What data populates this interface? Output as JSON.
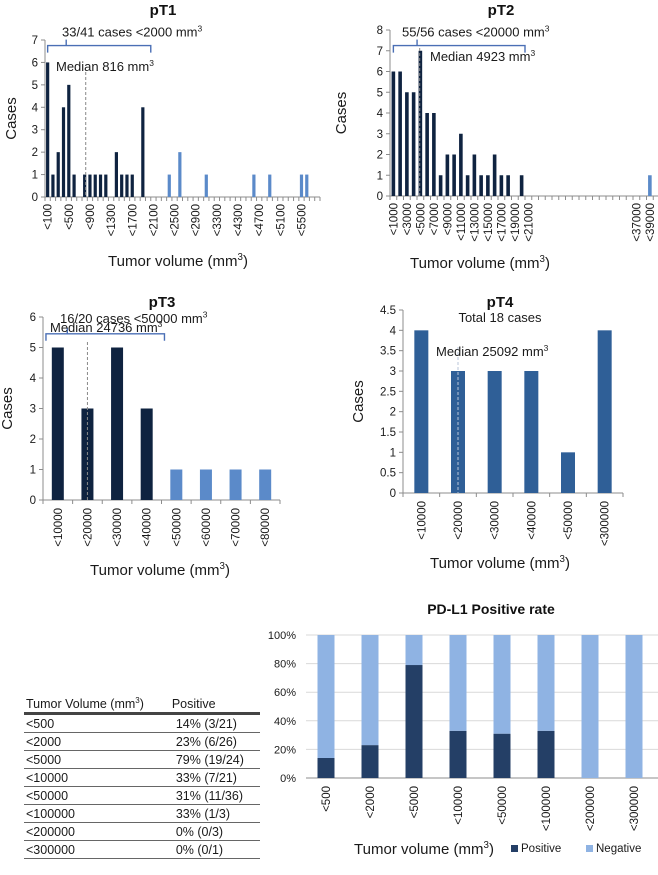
{
  "colors": {
    "dark_bar": "#0f2340",
    "light_bar": "#5b8ac9",
    "pt4_bar": "#2f5f97",
    "positive": "#243f66",
    "negative": "#8fb3e3",
    "bracket": "#4a6fb5",
    "median_line": "#888888",
    "axis": "#8c8c8c",
    "grid": "#d9d9d9"
  },
  "chart_data": [
    {
      "id": "pT1",
      "type": "bar",
      "title": "pT1",
      "xlabel": "Tumor volume (mm³)",
      "ylabel": "Cases",
      "ylim": [
        0,
        7
      ],
      "yticks": [
        0,
        1,
        2,
        3,
        4,
        5,
        6,
        7
      ],
      "n_bins": 52,
      "tick_labels": [
        {
          "bin": 0,
          "label": "<100"
        },
        {
          "bin": 4,
          "label": "<500"
        },
        {
          "bin": 8,
          "label": "<900"
        },
        {
          "bin": 12,
          "label": "<1300"
        },
        {
          "bin": 16,
          "label": "<1700"
        },
        {
          "bin": 20,
          "label": "<2100"
        },
        {
          "bin": 24,
          "label": "<2500"
        },
        {
          "bin": 28,
          "label": "<2900"
        },
        {
          "bin": 32,
          "label": "<3300"
        },
        {
          "bin": 36,
          "label": "<4300"
        },
        {
          "bin": 40,
          "label": "<4700"
        },
        {
          "bin": 44,
          "label": "<5100"
        },
        {
          "bin": 48,
          "label": "<5500"
        }
      ],
      "bars": [
        {
          "bin": 0,
          "value": 6,
          "group": "dark"
        },
        {
          "bin": 1,
          "value": 1,
          "group": "dark"
        },
        {
          "bin": 2,
          "value": 2,
          "group": "dark"
        },
        {
          "bin": 3,
          "value": 4,
          "group": "dark"
        },
        {
          "bin": 4,
          "value": 5,
          "group": "dark"
        },
        {
          "bin": 5,
          "value": 1,
          "group": "dark"
        },
        {
          "bin": 7,
          "value": 1,
          "group": "dark"
        },
        {
          "bin": 8,
          "value": 1,
          "group": "dark"
        },
        {
          "bin": 9,
          "value": 1,
          "group": "dark"
        },
        {
          "bin": 10,
          "value": 1,
          "group": "dark"
        },
        {
          "bin": 11,
          "value": 1,
          "group": "dark"
        },
        {
          "bin": 13,
          "value": 2,
          "group": "dark"
        },
        {
          "bin": 14,
          "value": 1,
          "group": "dark"
        },
        {
          "bin": 15,
          "value": 1,
          "group": "dark"
        },
        {
          "bin": 16,
          "value": 1,
          "group": "dark"
        },
        {
          "bin": 18,
          "value": 4,
          "group": "dark"
        },
        {
          "bin": 23,
          "value": 1,
          "group": "light"
        },
        {
          "bin": 25,
          "value": 2,
          "group": "light"
        },
        {
          "bin": 30,
          "value": 1,
          "group": "light"
        },
        {
          "bin": 39,
          "value": 1,
          "group": "light"
        },
        {
          "bin": 42,
          "value": 1,
          "group": "light"
        },
        {
          "bin": 48,
          "value": 1,
          "group": "light"
        },
        {
          "bin": 49,
          "value": 1,
          "group": "light"
        }
      ],
      "median_bin": 7.2,
      "bracket": {
        "from_bin": 0,
        "to_bin": 19.5,
        "level": 6.75
      },
      "annotations": {
        "bracket_text": "33/41 cases <2000 mm",
        "median_text": "Median 816 mm",
        "sup": "3"
      }
    },
    {
      "id": "pT2",
      "type": "bar",
      "title": "pT2",
      "xlabel": "Tumor volume (mm³)",
      "ylabel": "Cases",
      "ylim": [
        0,
        8
      ],
      "yticks": [
        0,
        1,
        2,
        3,
        4,
        5,
        6,
        7,
        8
      ],
      "n_bins": 40,
      "tick_labels": [
        {
          "bin": 0,
          "label": "<1000"
        },
        {
          "bin": 2,
          "label": "<3000"
        },
        {
          "bin": 4,
          "label": "<5000"
        },
        {
          "bin": 6,
          "label": "<7000"
        },
        {
          "bin": 8,
          "label": "<9000"
        },
        {
          "bin": 10,
          "label": "<11000"
        },
        {
          "bin": 12,
          "label": "<13000"
        },
        {
          "bin": 14,
          "label": "<15000"
        },
        {
          "bin": 16,
          "label": "<17000"
        },
        {
          "bin": 18,
          "label": "<19000"
        },
        {
          "bin": 20,
          "label": "<21000"
        },
        {
          "bin": 36,
          "label": "<37000"
        },
        {
          "bin": 38,
          "label": "<39000"
        }
      ],
      "axis_bins_visible": 28,
      "bars": [
        {
          "bin": 0,
          "value": 6,
          "group": "dark"
        },
        {
          "bin": 1,
          "value": 6,
          "group": "dark"
        },
        {
          "bin": 2,
          "value": 5,
          "group": "dark"
        },
        {
          "bin": 3,
          "value": 5,
          "group": "dark"
        },
        {
          "bin": 4,
          "value": 7,
          "group": "dark"
        },
        {
          "bin": 5,
          "value": 4,
          "group": "dark"
        },
        {
          "bin": 6,
          "value": 4,
          "group": "dark"
        },
        {
          "bin": 7,
          "value": 1,
          "group": "dark"
        },
        {
          "bin": 8,
          "value": 2,
          "group": "dark"
        },
        {
          "bin": 9,
          "value": 2,
          "group": "dark"
        },
        {
          "bin": 10,
          "value": 3,
          "group": "dark"
        },
        {
          "bin": 11,
          "value": 1,
          "group": "dark"
        },
        {
          "bin": 12,
          "value": 2,
          "group": "dark"
        },
        {
          "bin": 13,
          "value": 1,
          "group": "dark"
        },
        {
          "bin": 14,
          "value": 1,
          "group": "dark"
        },
        {
          "bin": 15,
          "value": 2,
          "group": "dark"
        },
        {
          "bin": 16,
          "value": 1,
          "group": "dark"
        },
        {
          "bin": 17,
          "value": 1,
          "group": "dark"
        },
        {
          "bin": 19,
          "value": 1,
          "group": "dark"
        },
        {
          "bin": 38,
          "value": 1,
          "group": "light"
        }
      ],
      "median_bin": 3.9,
      "bracket": {
        "from_bin": 0,
        "to_bin": 19.5,
        "level": 7.25
      },
      "annotations": {
        "bracket_text": "55/56 cases <20000 mm",
        "median_text": "Median 4923 mm",
        "sup": "3"
      }
    },
    {
      "id": "pT3",
      "type": "bar",
      "title": "pT3",
      "xlabel": "Tumor volume (mm³)",
      "ylabel": "Cases",
      "ylim": [
        0,
        6
      ],
      "yticks": [
        0,
        1,
        2,
        3,
        4,
        5,
        6
      ],
      "categories": [
        "<10000",
        "<20000",
        "<30000",
        "<40000",
        "<50000",
        "<60000",
        "<70000",
        "<80000"
      ],
      "values": [
        5,
        3,
        5,
        3,
        1,
        1,
        1,
        1
      ],
      "groups": [
        "dark",
        "dark",
        "dark",
        "dark",
        "light",
        "light",
        "light",
        "light"
      ],
      "median_bin": 1.0,
      "bracket": {
        "from_bin": -0.4,
        "to_bin": 3.6,
        "level": 5.45
      },
      "annotations": {
        "bracket_text": "16/20 cases <50000 mm",
        "median_text": "Median 24736 mm",
        "sup": "3"
      }
    },
    {
      "id": "pT4",
      "type": "bar",
      "title": "pT4",
      "xlabel": "Tumor volume (mm³)",
      "ylabel": "Cases",
      "ylim": [
        0,
        4.5
      ],
      "yticks": [
        0,
        0.5,
        1,
        1.5,
        2,
        2.5,
        3,
        3.5,
        4,
        4.5
      ],
      "categories": [
        "<10000",
        "<20000",
        "<30000",
        "<40000",
        "<50000",
        "<300000"
      ],
      "values": [
        4,
        3,
        3,
        3,
        1,
        4
      ],
      "median_bin": 1.0,
      "annotations": {
        "total_text": "Total 18 cases",
        "median_text": "Median 25092 mm",
        "sup": "3"
      }
    },
    {
      "id": "pdl1",
      "type": "bar",
      "stacked": true,
      "title": "PD-L1 Positive rate",
      "xlabel": "Tumor volume (mm³)",
      "ylabel": "",
      "ylim": [
        0,
        100
      ],
      "yticks": [
        "0%",
        "20%",
        "40%",
        "60%",
        "80%",
        "100%"
      ],
      "grid": true,
      "legend_position": "bottom-right",
      "categories": [
        "<500",
        "<2000",
        "<5000",
        "<10000",
        "<50000",
        "<100000",
        "<200000",
        "<300000"
      ],
      "series": [
        {
          "name": "Positive",
          "values": [
            14,
            23,
            79,
            33,
            31,
            33,
            0,
            0
          ]
        },
        {
          "name": "Negative",
          "values": [
            86,
            77,
            21,
            67,
            69,
            67,
            100,
            100
          ]
        }
      ]
    }
  ],
  "table": {
    "headers": [
      "Tumor Volume (mm",
      "3",
      ") ",
      "Positive"
    ],
    "rows": [
      [
        "<500",
        "14% (3/21)"
      ],
      [
        "<2000",
        "23% (6/26)"
      ],
      [
        "<5000",
        "79% (19/24)"
      ],
      [
        "<10000",
        "33% (7/21)"
      ],
      [
        "<50000",
        "31% (11/36)"
      ],
      [
        "<100000",
        "33% (1/3)"
      ],
      [
        "<200000",
        "0% (0/3)"
      ],
      [
        "<300000",
        "0% (0/1)"
      ]
    ]
  }
}
